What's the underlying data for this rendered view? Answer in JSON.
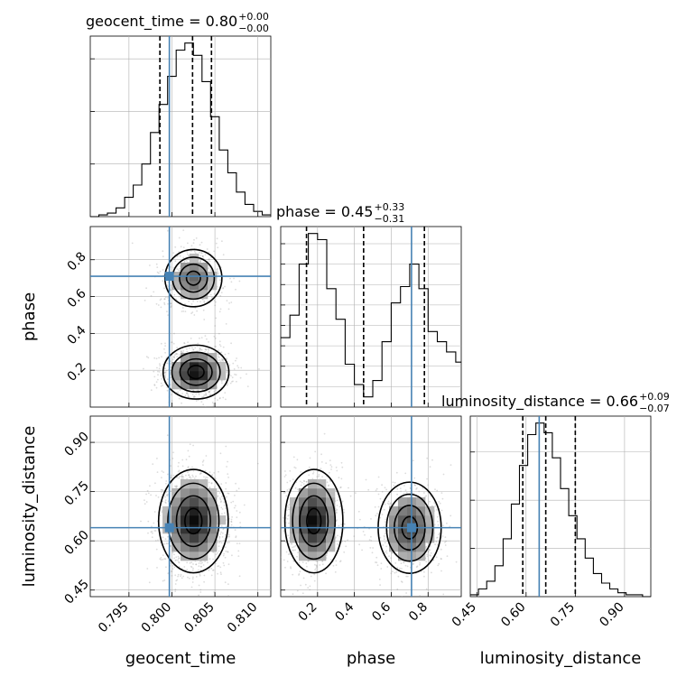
{
  "colors": {
    "truth": "#4682b4",
    "histogram": "#000000",
    "grid": "#b0b0b0",
    "samples": "#9a9a9a"
  },
  "chart_data": {
    "type": "corner",
    "parameters": [
      "geocent_time",
      "phase",
      "luminosity_distance"
    ],
    "grid": true,
    "truths": {
      "geocent_time": 0.7997,
      "phase": 0.71,
      "luminosity_distance": 0.64
    },
    "axes": {
      "geocent_time": {
        "range": [
          0.7905,
          0.8115
        ],
        "ticks": [
          0.795,
          0.8,
          0.805,
          0.81
        ],
        "tick_labels": [
          "0.795",
          "0.800",
          "0.805",
          "0.810"
        ],
        "label": "geocent_time"
      },
      "phase": {
        "range": [
          0.0,
          0.98
        ],
        "ticks": [
          0.2,
          0.4,
          0.6,
          0.8
        ],
        "tick_labels": [
          "0.2",
          "0.4",
          "0.6",
          "0.8"
        ],
        "label": "phase"
      },
      "luminosity_distance": {
        "range": [
          0.43,
          0.98
        ],
        "ticks": [
          0.45,
          0.6,
          0.75,
          0.9
        ],
        "tick_labels": [
          "0.45",
          "0.60",
          "0.75",
          "0.90"
        ],
        "label": "luminosity_distance"
      }
    },
    "marginals": [
      {
        "parameter": "geocent_time",
        "title": "geocent_time = 0.80",
        "title_sup": "+0.00",
        "title_sub": "−0.00",
        "quantiles": [
          0.7986,
          0.8024,
          0.8046
        ],
        "bin_edges": [
          0.7905,
          0.7915,
          0.7925,
          0.7935,
          0.7945,
          0.7955,
          0.7965,
          0.7975,
          0.7985,
          0.7995,
          0.8005,
          0.8015,
          0.8025,
          0.8035,
          0.8045,
          0.8055,
          0.8065,
          0.8075,
          0.8085,
          0.8095,
          0.8105,
          0.8115
        ],
        "counts": [
          0,
          1,
          2,
          5,
          11,
          18,
          30,
          48,
          64,
          80,
          95,
          99,
          92,
          77,
          57,
          38,
          25,
          14,
          7,
          3,
          1
        ],
        "yticks": [
          30,
          60,
          90
        ]
      },
      {
        "parameter": "phase",
        "title": "phase = 0.45",
        "title_sup": "+0.33",
        "title_sub": "−0.31",
        "quantiles": [
          0.14,
          0.45,
          0.78
        ],
        "bin_edges": [
          0.0,
          0.05,
          0.1,
          0.15,
          0.2,
          0.25,
          0.3,
          0.35,
          0.4,
          0.45,
          0.5,
          0.55,
          0.6,
          0.65,
          0.7,
          0.75,
          0.8,
          0.85,
          0.9,
          0.95,
          1.0
        ],
        "counts": [
          34,
          45,
          70,
          85,
          82,
          58,
          43,
          21,
          11,
          5,
          13,
          32,
          51,
          59,
          70,
          58,
          37,
          32,
          27,
          22
        ],
        "yticks": [
          10,
          20,
          30,
          40,
          50,
          60,
          70,
          80
        ]
      },
      {
        "parameter": "luminosity_distance",
        "title": "luminosity_distance = 0.66",
        "title_sup": "+0.09",
        "title_sub": "−0.07",
        "quantiles": [
          0.59,
          0.66,
          0.75
        ],
        "bin_edges": [
          0.43,
          0.455,
          0.48,
          0.505,
          0.53,
          0.555,
          0.58,
          0.605,
          0.63,
          0.655,
          0.68,
          0.705,
          0.73,
          0.755,
          0.78,
          0.805,
          0.83,
          0.855,
          0.88,
          0.905,
          0.93,
          0.955,
          0.98
        ],
        "counts": [
          1,
          4,
          8,
          16,
          30,
          48,
          68,
          84,
          90,
          85,
          72,
          56,
          42,
          30,
          20,
          12,
          7,
          4,
          2,
          1,
          1,
          0
        ],
        "yticks": [
          25,
          50,
          75
        ]
      }
    ],
    "joint": [
      {
        "x": "geocent_time",
        "y": "phase",
        "modes": [
          {
            "cx": 0.8025,
            "cy": 0.7,
            "sx": 0.0016,
            "sy": 0.075,
            "w": 0.6
          },
          {
            "cx": 0.8028,
            "cy": 0.19,
            "sx": 0.0017,
            "sy": 0.065,
            "w": 1.0
          }
        ]
      },
      {
        "x": "geocent_time",
        "y": "luminosity_distance",
        "modes": [
          {
            "cx": 0.8025,
            "cy": 0.66,
            "sx": 0.0018,
            "sy": 0.07,
            "w": 1.0
          }
        ]
      },
      {
        "x": "phase",
        "y": "luminosity_distance",
        "modes": [
          {
            "cx": 0.18,
            "cy": 0.66,
            "sx": 0.07,
            "sy": 0.07,
            "w": 1.0
          },
          {
            "cx": 0.7,
            "cy": 0.64,
            "sx": 0.08,
            "sy": 0.065,
            "w": 0.75
          }
        ]
      }
    ]
  }
}
